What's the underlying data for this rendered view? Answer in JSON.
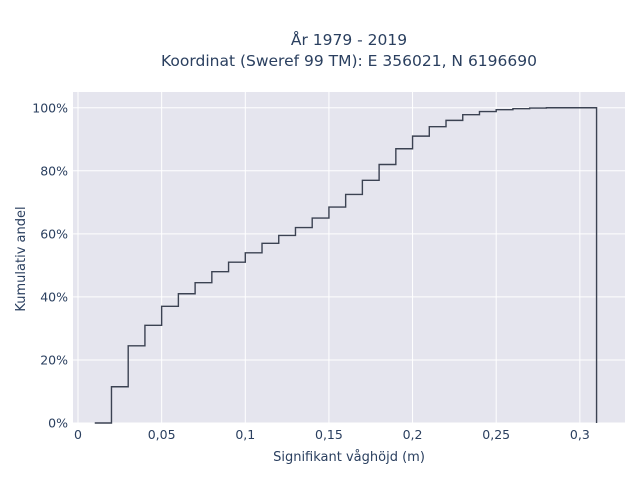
{
  "chart_data": {
    "type": "line",
    "subtype": "step-cdf",
    "title_line1": "År 1979 - 2019",
    "title_line2": "Koordinat (Sweref 99 TM): E 356021, N 6196690",
    "xlabel": "Signifikant våghöjd (m)",
    "ylabel": "Kumulativ andel",
    "xlim": [
      -0.003,
      0.327
    ],
    "ylim": [
      0,
      1.05
    ],
    "x_ticks": [
      0,
      0.05,
      0.1,
      0.15,
      0.2,
      0.25,
      0.3
    ],
    "x_tick_labels": [
      "0",
      "0,05",
      "0,1",
      "0,15",
      "0,2",
      "0,25",
      "0,3"
    ],
    "y_ticks": [
      0,
      0.2,
      0.4,
      0.6,
      0.8,
      1.0
    ],
    "y_tick_labels": [
      "0%",
      "20%",
      "40%",
      "60%",
      "80%",
      "100%"
    ],
    "grid": true,
    "line_color": "#3b4252",
    "background_color": "#e5e5ee",
    "x": [
      0.01,
      0.02,
      0.03,
      0.04,
      0.05,
      0.06,
      0.07,
      0.08,
      0.09,
      0.1,
      0.11,
      0.12,
      0.13,
      0.14,
      0.15,
      0.16,
      0.17,
      0.18,
      0.19,
      0.2,
      0.21,
      0.22,
      0.23,
      0.24,
      0.25,
      0.26,
      0.27,
      0.28,
      0.29,
      0.3,
      0.31
    ],
    "y": [
      0.0,
      0.115,
      0.245,
      0.31,
      0.37,
      0.41,
      0.445,
      0.48,
      0.51,
      0.54,
      0.57,
      0.595,
      0.62,
      0.65,
      0.685,
      0.725,
      0.77,
      0.82,
      0.87,
      0.91,
      0.94,
      0.96,
      0.978,
      0.988,
      0.994,
      0.997,
      0.999,
      1.0,
      1.0,
      1.0,
      0.0
    ]
  }
}
